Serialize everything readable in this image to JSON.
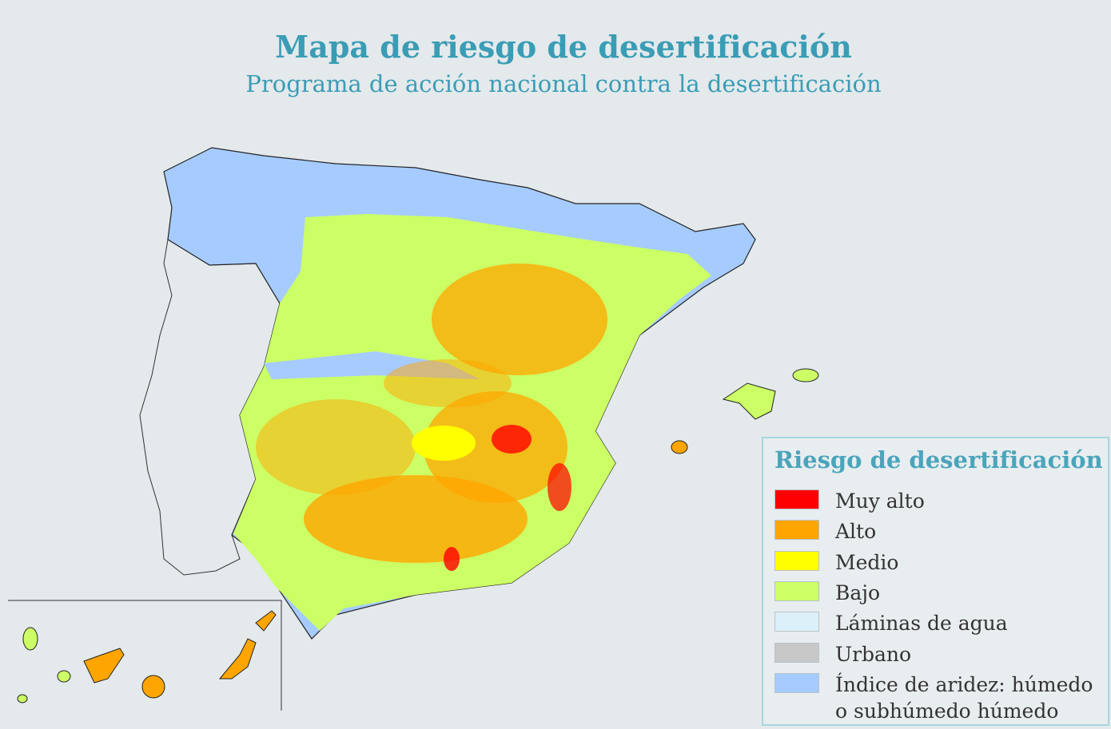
{
  "header": {
    "title": "Mapa de riesgo de desertificación",
    "subtitle": "Programa de acción nacional contra la desertificación"
  },
  "legend": {
    "title": "Riesgo de desertificación",
    "items": [
      {
        "label": "Muy alto",
        "color": "#ff0000"
      },
      {
        "label": "Alto",
        "color": "#ffa500"
      },
      {
        "label": "Medio",
        "color": "#ffff00"
      },
      {
        "label": "Bajo",
        "color": "#ccff66"
      },
      {
        "label": "Láminas de agua",
        "color": "#dcf0fa"
      },
      {
        "label": "Urbano",
        "color": "#c8c8c8"
      },
      {
        "label": "Índice de aridez: húmedo o subhúmedo húmedo",
        "color": "#a6cbff"
      }
    ]
  }
}
